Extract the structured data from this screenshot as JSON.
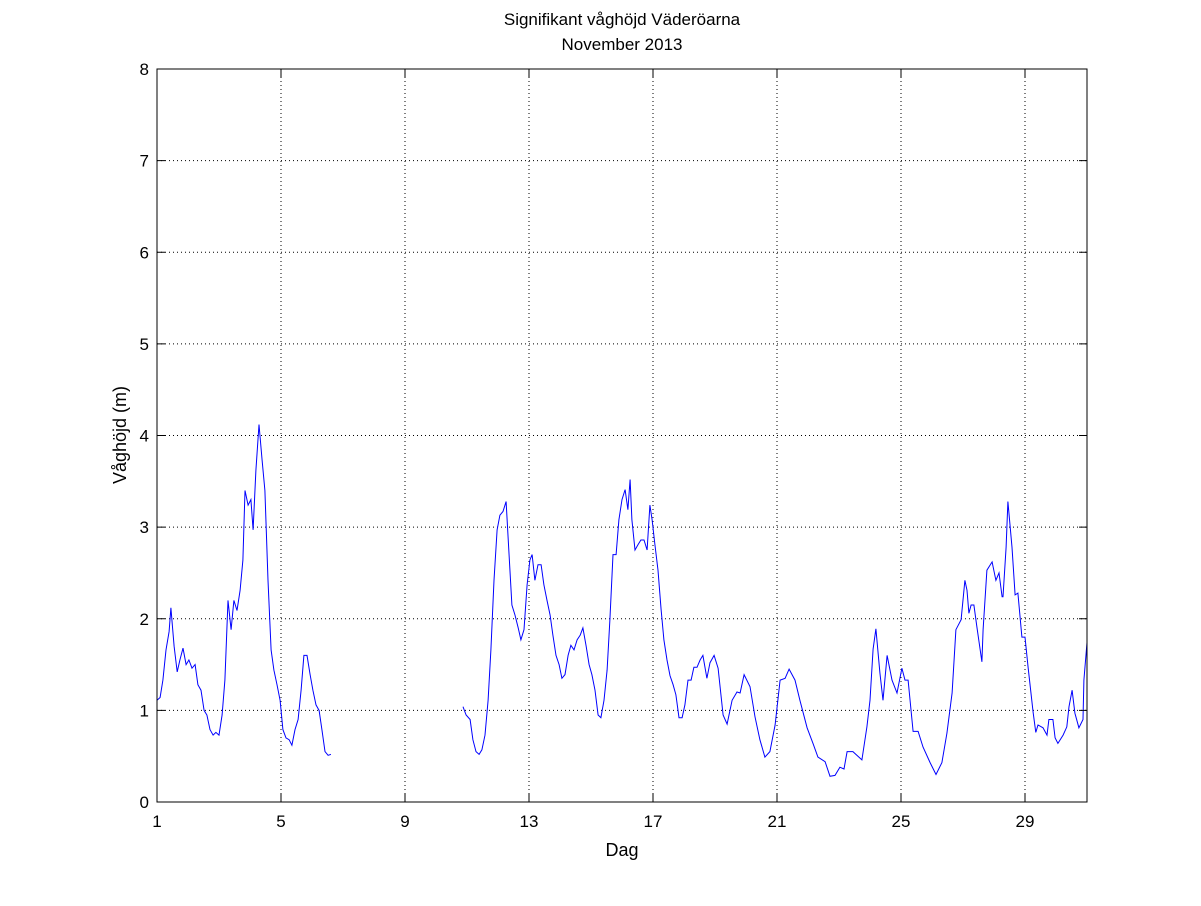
{
  "chart_data": {
    "type": "line",
    "title": "Signifikant våghöjd Väderöarna",
    "subtitle": "November 2013",
    "xlabel": "Dag",
    "ylabel": "Våghöjd (m)",
    "xlim": [
      1,
      31
    ],
    "ylim": [
      0,
      8
    ],
    "xticks": [
      1,
      5,
      9,
      13,
      17,
      21,
      25,
      29
    ],
    "yticks": [
      0,
      1,
      2,
      3,
      4,
      5,
      6,
      7,
      8
    ],
    "grid": true,
    "line_color": "#0000ff",
    "series": [
      {
        "name": "segment-1",
        "x": [
          1.0,
          1.1,
          1.19,
          1.29,
          1.39,
          1.45,
          1.55,
          1.65,
          1.74,
          1.84,
          1.94,
          2.03,
          2.13,
          2.23,
          2.32,
          2.42,
          2.52,
          2.61,
          2.71,
          2.81,
          2.9,
          3.0,
          3.1,
          3.19,
          3.29,
          3.39,
          3.48,
          3.58,
          3.68,
          3.77,
          3.84,
          3.94,
          4.03,
          4.1,
          4.19,
          4.29,
          4.39,
          4.48,
          4.58,
          4.68,
          4.77,
          4.87,
          4.97,
          5.06,
          5.16,
          5.26,
          5.35,
          5.45,
          5.55,
          5.65,
          5.74,
          5.84,
          5.94,
          6.03,
          6.13,
          6.23,
          6.32,
          6.42,
          6.52,
          6.61
        ],
        "y": [
          1.11,
          1.14,
          1.33,
          1.66,
          1.86,
          2.12,
          1.7,
          1.42,
          1.55,
          1.68,
          1.5,
          1.55,
          1.46,
          1.5,
          1.28,
          1.22,
          1.0,
          0.95,
          0.79,
          0.73,
          0.76,
          0.73,
          0.95,
          1.33,
          2.2,
          1.88,
          2.2,
          2.09,
          2.31,
          2.64,
          3.4,
          3.24,
          3.3,
          2.97,
          3.62,
          4.12,
          3.73,
          3.4,
          2.42,
          1.66,
          1.44,
          1.28,
          1.11,
          0.79,
          0.7,
          0.68,
          0.62,
          0.79,
          0.9,
          1.22,
          1.6,
          1.6,
          1.39,
          1.22,
          1.06,
          1.0,
          0.79,
          0.55,
          0.51,
          0.52
        ]
      },
      {
        "name": "segment-2",
        "x": [
          10.87,
          10.97,
          11.1,
          11.19,
          11.29,
          11.39,
          11.48,
          11.58,
          11.68,
          11.77,
          11.87,
          11.97,
          12.06,
          12.16,
          12.26,
          12.35,
          12.45,
          12.55,
          12.65,
          12.74,
          12.84,
          12.94,
          13.03,
          13.1,
          13.19,
          13.29,
          13.39,
          13.48,
          13.58,
          13.68,
          13.77,
          13.87,
          13.97,
          14.06,
          14.16,
          14.26,
          14.35,
          14.45,
          14.55,
          14.65,
          14.74,
          14.84,
          14.94,
          15.03,
          15.13,
          15.23,
          15.32,
          15.42,
          15.52,
          15.61,
          15.71,
          15.81,
          15.9,
          16.0,
          16.1,
          16.19,
          16.26,
          16.32,
          16.42,
          16.52,
          16.61,
          16.71,
          16.81,
          16.9,
          16.97,
          17.06,
          17.16,
          17.26,
          17.35,
          17.45,
          17.55,
          17.65,
          17.74,
          17.84,
          17.94,
          18.03,
          18.13,
          18.23,
          18.32,
          18.42,
          18.52,
          18.61,
          18.74,
          18.84,
          18.97,
          19.1,
          19.26,
          19.39,
          19.55,
          19.71,
          19.81,
          19.94,
          20.13,
          20.29,
          20.45,
          20.61,
          20.77,
          20.94,
          21.1,
          21.26,
          21.39,
          21.58,
          21.74,
          21.97,
          22.16,
          22.32,
          22.55,
          22.71,
          22.87,
          23.03,
          23.16,
          23.26,
          23.45,
          23.74,
          23.9,
          24.0,
          24.1,
          24.19,
          24.32,
          24.42,
          24.55,
          24.71,
          24.87,
          25.03,
          25.13,
          25.23,
          25.39,
          25.55,
          25.71,
          25.94,
          26.13,
          26.32,
          26.48,
          26.65,
          26.77,
          26.94,
          27.06,
          27.13,
          27.19,
          27.26,
          27.35,
          27.45,
          27.61,
          27.65,
          27.77,
          27.94,
          28.06,
          28.16,
          28.26,
          28.29,
          28.39,
          28.45,
          28.58,
          28.68,
          28.77,
          28.9,
          29.0,
          29.1,
          29.26,
          29.35,
          29.42,
          29.58,
          29.71,
          29.77,
          29.9,
          29.97,
          30.06,
          30.23,
          30.35,
          30.42,
          30.52,
          30.61,
          30.74,
          30.87,
          30.9,
          31.0
        ],
        "y": [
          1.04,
          0.95,
          0.9,
          0.68,
          0.55,
          0.52,
          0.57,
          0.73,
          1.11,
          1.66,
          2.42,
          2.97,
          3.13,
          3.17,
          3.28,
          2.75,
          2.15,
          2.04,
          1.9,
          1.77,
          1.88,
          2.37,
          2.64,
          2.7,
          2.42,
          2.59,
          2.59,
          2.37,
          2.2,
          2.04,
          1.82,
          1.6,
          1.5,
          1.35,
          1.39,
          1.6,
          1.71,
          1.66,
          1.77,
          1.82,
          1.9,
          1.71,
          1.5,
          1.39,
          1.22,
          0.95,
          0.92,
          1.11,
          1.44,
          1.99,
          2.7,
          2.7,
          3.08,
          3.3,
          3.41,
          3.19,
          3.52,
          3.08,
          2.75,
          2.81,
          2.86,
          2.86,
          2.75,
          3.24,
          3.08,
          2.81,
          2.53,
          2.1,
          1.77,
          1.55,
          1.38,
          1.28,
          1.17,
          0.92,
          0.92,
          1.06,
          1.33,
          1.33,
          1.47,
          1.47,
          1.55,
          1.6,
          1.35,
          1.52,
          1.6,
          1.46,
          0.95,
          0.85,
          1.11,
          1.2,
          1.19,
          1.39,
          1.26,
          0.93,
          0.68,
          0.49,
          0.55,
          0.84,
          1.33,
          1.35,
          1.45,
          1.33,
          1.11,
          0.81,
          0.64,
          0.49,
          0.44,
          0.28,
          0.29,
          0.38,
          0.36,
          0.55,
          0.55,
          0.46,
          0.82,
          1.11,
          1.67,
          1.89,
          1.41,
          1.11,
          1.6,
          1.33,
          1.19,
          1.46,
          1.33,
          1.33,
          0.77,
          0.77,
          0.6,
          0.43,
          0.3,
          0.43,
          0.75,
          1.19,
          1.88,
          1.99,
          2.42,
          2.31,
          2.06,
          2.15,
          2.15,
          1.91,
          1.53,
          1.88,
          2.53,
          2.62,
          2.42,
          2.5,
          2.24,
          2.24,
          2.78,
          3.28,
          2.78,
          2.26,
          2.28,
          1.8,
          1.8,
          1.47,
          0.98,
          0.76,
          0.84,
          0.81,
          0.73,
          0.9,
          0.9,
          0.7,
          0.64,
          0.73,
          0.82,
          1.04,
          1.22,
          0.97,
          0.81,
          0.9,
          1.33,
          1.74
        ]
      }
    ]
  }
}
